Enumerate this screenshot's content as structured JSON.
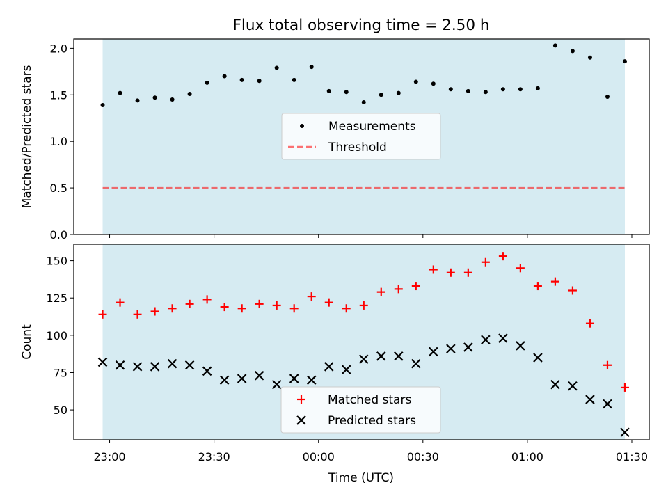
{
  "figure": {
    "title": "Flux total observing time = 2.50 h",
    "xlabel": "Time (UTC)",
    "xticks": [
      "23:00",
      "23:30",
      "00:00",
      "00:30",
      "01:00",
      "01:30"
    ]
  },
  "colors": {
    "span": "#add8e6",
    "threshold": "#ff0000",
    "matched": "#ff0000",
    "predicted": "#000000",
    "measurement": "#000000"
  },
  "chart_data": [
    {
      "type": "scatter",
      "panel": "top",
      "ylabel": "Matched/Predicted stars",
      "ylim": [
        0.0,
        2.1
      ],
      "yticks": [
        "0.0",
        "0.5",
        "1.0",
        "1.5",
        "2.0"
      ],
      "x_axis": "time (UTC), minutes after 23:00",
      "shaded_span": [
        -2,
        148
      ],
      "legend_position": "center",
      "series": [
        {
          "name": "Measurements",
          "x": [
            -2,
            3,
            8,
            13,
            18,
            23,
            28,
            33,
            38,
            43,
            48,
            53,
            58,
            63,
            68,
            73,
            78,
            83,
            88,
            93,
            98,
            103,
            108,
            113,
            118,
            123,
            128,
            133,
            138,
            143,
            148
          ],
          "y": [
            1.39,
            1.52,
            1.44,
            1.47,
            1.45,
            1.51,
            1.63,
            1.7,
            1.66,
            1.65,
            1.79,
            1.66,
            1.8,
            1.54,
            1.53,
            1.42,
            1.5,
            1.52,
            1.64,
            1.62,
            1.56,
            1.54,
            1.53,
            1.56,
            1.56,
            1.57,
            2.03,
            1.97,
            1.9,
            1.48,
            1.86
          ]
        },
        {
          "name": "Threshold",
          "style": "dashed",
          "x": [
            -2,
            148
          ],
          "y": [
            0.5,
            0.5
          ]
        }
      ]
    },
    {
      "type": "scatter",
      "panel": "bottom",
      "ylabel": "Count",
      "ylim": [
        30,
        161
      ],
      "yticks": [
        "50",
        "75",
        "100",
        "125",
        "150"
      ],
      "shaded_span": [
        -2,
        148
      ],
      "legend_position": "bottom-center",
      "series": [
        {
          "name": "Matched stars",
          "marker": "+",
          "x": [
            -2,
            3,
            8,
            13,
            18,
            23,
            28,
            33,
            38,
            43,
            48,
            53,
            58,
            63,
            68,
            73,
            78,
            83,
            88,
            93,
            98,
            103,
            108,
            113,
            118,
            123,
            128,
            133,
            138,
            143,
            148
          ],
          "y": [
            114,
            122,
            114,
            116,
            118,
            121,
            124,
            119,
            118,
            121,
            120,
            118,
            126,
            122,
            118,
            120,
            129,
            131,
            133,
            144,
            142,
            142,
            149,
            153,
            145,
            133,
            136,
            130,
            108,
            80,
            65
          ]
        },
        {
          "name": "Predicted stars",
          "marker": "x",
          "x": [
            -2,
            3,
            8,
            13,
            18,
            23,
            28,
            33,
            38,
            43,
            48,
            53,
            58,
            63,
            68,
            73,
            78,
            83,
            88,
            93,
            98,
            103,
            108,
            113,
            118,
            123,
            128,
            133,
            138,
            143,
            148
          ],
          "y": [
            82,
            80,
            79,
            79,
            81,
            80,
            76,
            70,
            71,
            73,
            67,
            71,
            70,
            79,
            77,
            84,
            86,
            86,
            81,
            89,
            91,
            92,
            97,
            98,
            93,
            85,
            67,
            66,
            57,
            54,
            35
          ]
        }
      ]
    }
  ]
}
